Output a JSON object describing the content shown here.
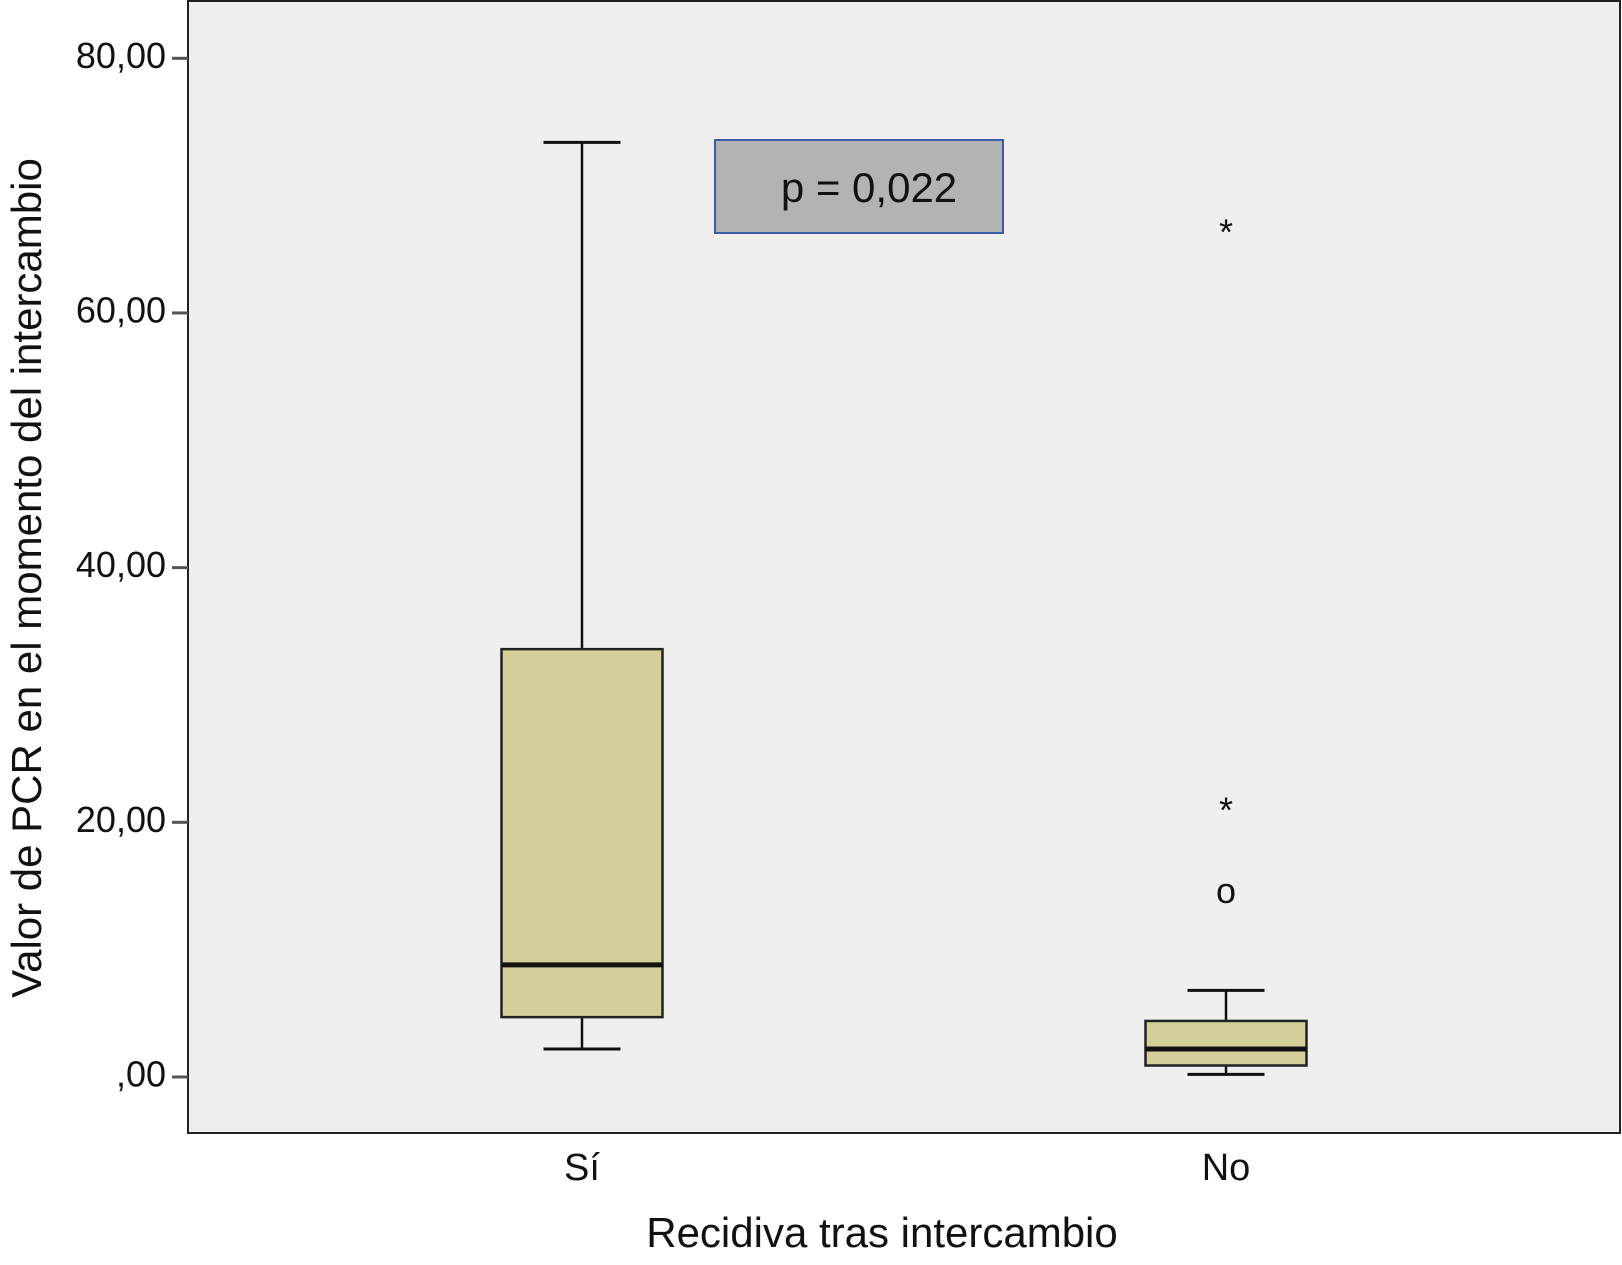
{
  "chart_data": {
    "type": "box",
    "x_label": "Recidiva tras intercambio",
    "y_label": "Valor de PCR en el momento del intercambio",
    "annotation": "p = 0,022",
    "categories": [
      "Sí",
      "No"
    ],
    "color": "#d4cf98",
    "boxes": [
      {
        "whislo": 2.2,
        "q1": 4.7,
        "med": 8.8,
        "q3": 33.6,
        "whishi": 73.4,
        "outliers": []
      },
      {
        "whislo": 0.2,
        "q1": 0.9,
        "med": 2.2,
        "q3": 4.4,
        "whishi": 6.8,
        "outliers": [
          {
            "value": 14.4,
            "marker": "o"
          },
          {
            "value": 21.2,
            "marker": "*"
          },
          {
            "value": 66.6,
            "marker": "*"
          }
        ]
      }
    ],
    "ylim": [
      -4.4,
      84.5
    ],
    "yticks": [
      {
        "value": 0,
        "label": ",00"
      },
      {
        "value": 20,
        "label": "20,00"
      },
      {
        "value": 40,
        "label": "40,00"
      },
      {
        "value": 60,
        "label": "60,00"
      },
      {
        "value": 80,
        "label": "80,00"
      }
    ]
  }
}
